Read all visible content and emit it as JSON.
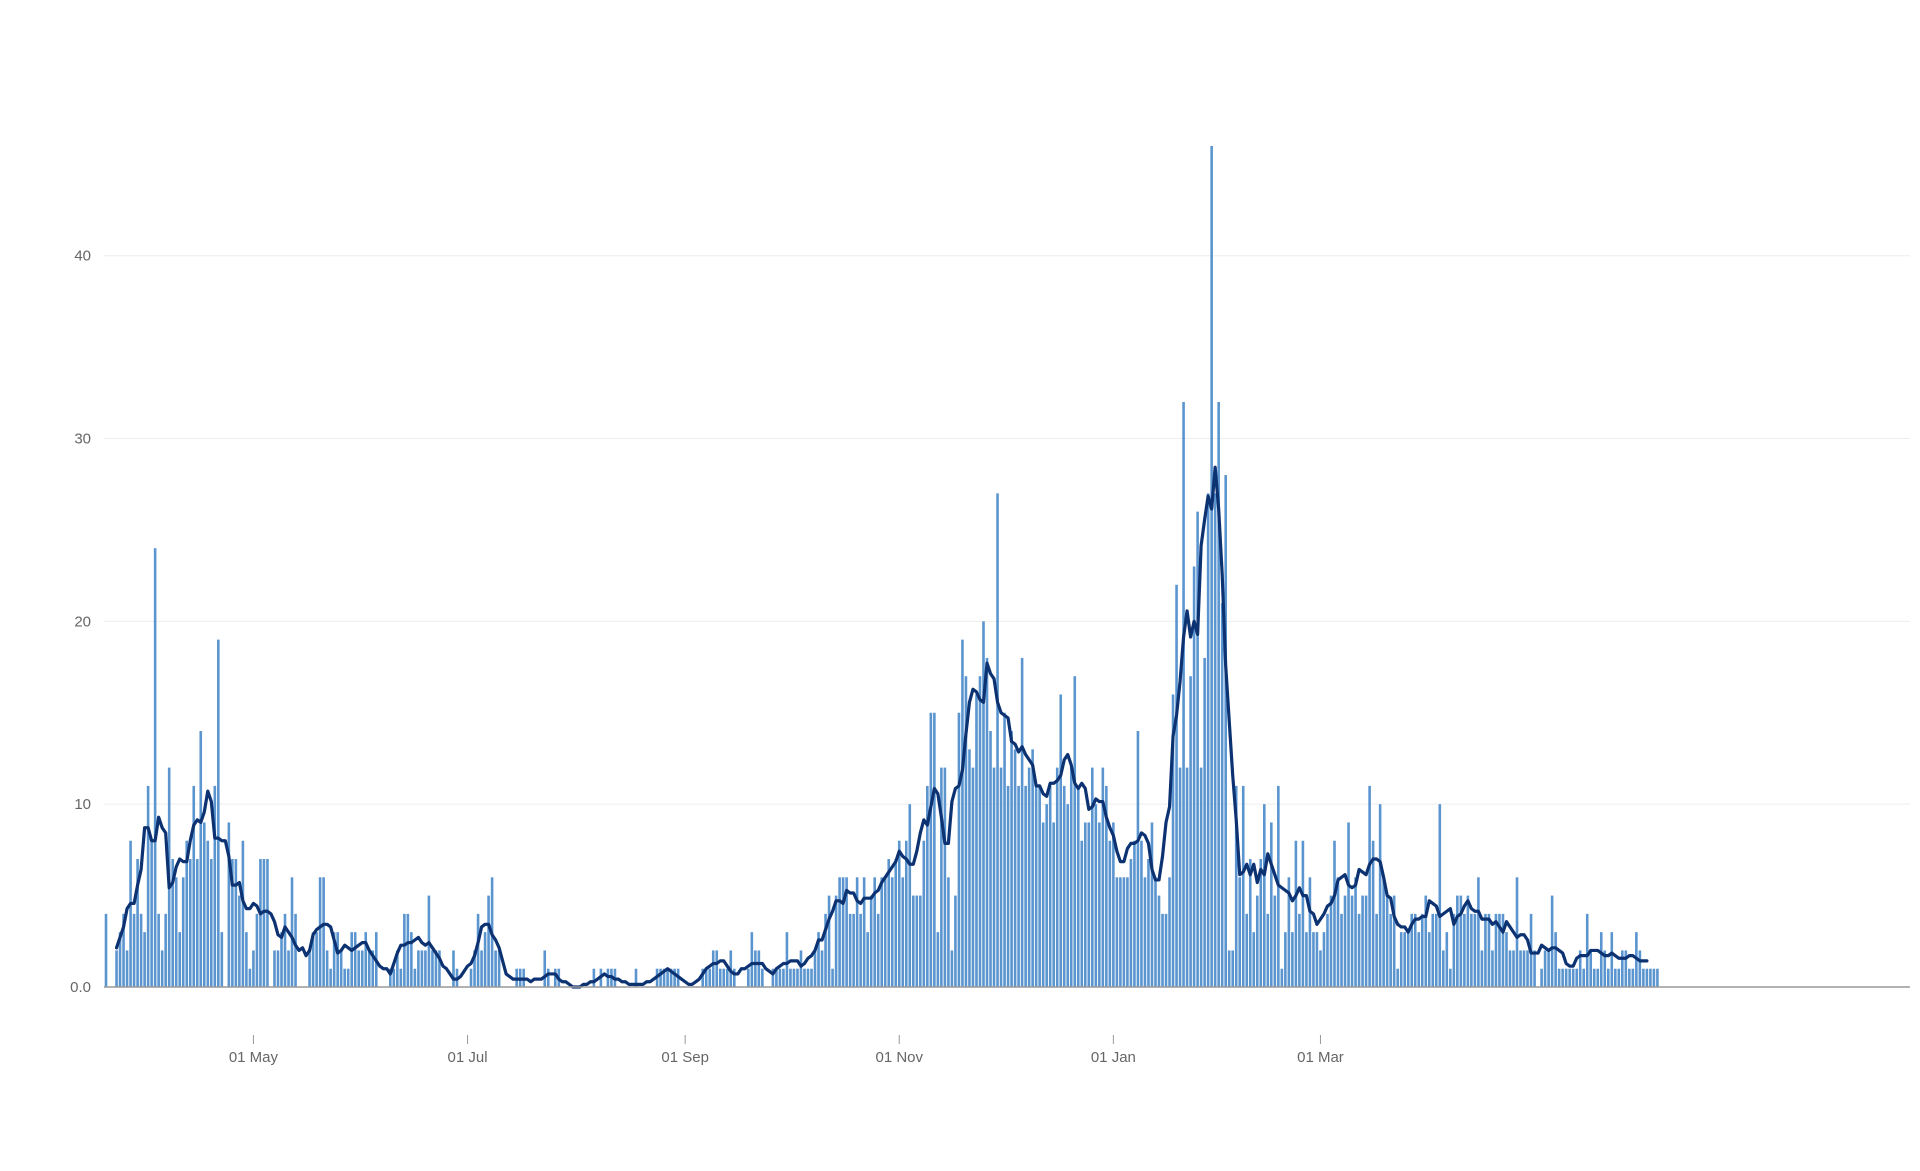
{
  "chart_data": {
    "type": "bar",
    "title": "",
    "xlabel": "",
    "ylabel": "",
    "start_date": "2020-03-20",
    "ylim": [
      0,
      46
    ],
    "yticks": [
      {
        "value": 0,
        "label": "0.0"
      },
      {
        "value": 10,
        "label": "10"
      },
      {
        "value": 20,
        "label": "20"
      },
      {
        "value": 30,
        "label": "30"
      },
      {
        "value": 40,
        "label": "40"
      }
    ],
    "xticks": [
      {
        "date": "2020-05-01",
        "label": "01 May"
      },
      {
        "date": "2020-07-01",
        "label": "01 Jul"
      },
      {
        "date": "2020-09-01",
        "label": "01 Sep"
      },
      {
        "date": "2020-11-01",
        "label": "01 Nov"
      },
      {
        "date": "2021-01-01",
        "label": "01 Jan"
      },
      {
        "date": "2021-03-01",
        "label": "01 Mar"
      }
    ],
    "grid": true,
    "legend": "none",
    "colors": {
      "bars": "#5b95cf",
      "line": "#0d3272",
      "grid": "#eeeeee",
      "axis": "#999999"
    },
    "series": [
      {
        "type": "bar",
        "values": [
          4,
          0,
          0,
          2,
          3,
          4,
          2,
          8,
          4,
          7,
          4,
          3,
          11,
          8,
          24,
          4,
          2,
          4,
          12,
          7,
          6,
          3,
          6,
          8,
          7,
          11,
          7,
          14,
          9,
          8,
          7,
          11,
          19,
          3,
          0,
          9,
          7,
          7,
          5,
          8,
          3,
          1,
          2,
          4,
          7,
          7,
          7,
          0,
          2,
          2,
          3,
          4,
          2,
          6,
          4,
          0,
          0,
          0,
          2,
          3,
          3,
          6,
          6,
          2,
          1,
          3,
          3,
          2,
          1,
          1,
          3,
          3,
          2,
          2,
          3,
          2,
          2,
          3,
          0,
          0,
          0,
          1,
          1,
          2,
          1,
          4,
          4,
          3,
          1,
          2,
          2,
          2,
          5,
          2,
          2,
          2,
          0,
          0,
          0,
          2,
          1,
          0,
          0,
          0,
          1,
          2,
          4,
          2,
          3,
          5,
          6,
          2,
          2,
          0,
          0,
          0,
          0,
          1,
          1,
          1,
          0,
          0,
          0,
          0,
          0,
          2,
          1,
          0,
          1,
          1,
          0,
          0,
          0,
          0,
          0,
          0,
          0,
          0,
          0,
          1,
          0,
          1,
          0,
          1,
          1,
          1,
          0,
          0,
          0,
          0,
          0,
          1,
          0,
          0,
          0,
          0,
          0,
          1,
          1,
          1,
          1,
          1,
          1,
          1,
          0,
          0,
          0,
          0,
          0,
          0,
          1,
          1,
          1,
          2,
          2,
          1,
          1,
          1,
          2,
          1,
          0,
          0,
          0,
          1,
          3,
          2,
          2,
          1,
          0,
          0,
          1,
          1,
          1,
          1,
          3,
          1,
          1,
          1,
          2,
          1,
          1,
          1,
          2,
          3,
          2,
          4,
          5,
          1,
          5,
          6,
          6,
          6,
          4,
          4,
          6,
          4,
          6,
          3,
          5,
          6,
          4,
          6,
          6,
          7,
          6,
          7,
          8,
          6,
          8,
          10,
          5,
          5,
          5,
          8,
          11,
          15,
          15,
          3,
          12,
          12,
          6,
          2,
          5,
          15,
          19,
          17,
          13,
          12,
          16,
          17,
          20,
          18,
          14,
          12,
          27,
          12,
          15,
          11,
          14,
          13,
          11,
          18,
          11,
          12,
          13,
          11,
          11,
          9,
          10,
          11,
          9,
          12,
          16,
          11,
          10,
          12,
          17,
          11,
          8,
          9,
          9,
          12,
          10,
          9,
          12,
          11,
          8,
          9,
          6,
          6,
          6,
          6,
          7,
          8,
          14,
          8,
          6,
          7,
          9,
          6,
          5,
          4,
          4,
          6,
          16,
          22,
          12,
          32,
          12,
          17,
          23,
          26,
          12,
          18,
          27,
          46,
          27,
          32,
          21,
          28,
          2,
          2,
          11,
          6,
          11,
          4,
          7,
          3,
          5,
          7,
          10,
          4,
          9,
          5,
          11,
          1,
          3,
          6,
          3,
          8,
          4,
          8,
          3,
          6,
          3,
          3,
          2,
          3,
          4,
          5,
          8,
          6,
          4,
          5,
          9,
          5,
          6,
          4,
          5,
          5,
          11,
          8,
          4,
          10,
          6,
          5,
          4,
          5,
          1,
          3,
          3,
          3,
          4,
          4,
          3,
          4,
          5,
          3,
          4,
          4,
          10,
          2,
          3,
          1,
          4,
          5,
          5,
          4,
          5,
          4,
          4,
          6,
          2,
          4,
          4,
          2,
          4,
          4,
          4,
          3,
          2,
          2,
          6,
          2,
          2,
          2,
          4,
          2,
          0,
          1,
          2,
          2,
          5,
          3,
          1,
          1,
          1,
          1,
          1,
          1,
          2,
          1,
          4,
          2,
          1,
          1,
          3,
          2,
          1,
          3,
          1,
          1,
          2,
          2,
          1,
          1,
          3,
          2,
          1,
          1,
          1,
          1,
          1
        ]
      },
      {
        "type": "line",
        "name": "",
        "smoothing_window": 7
      }
    ]
  }
}
